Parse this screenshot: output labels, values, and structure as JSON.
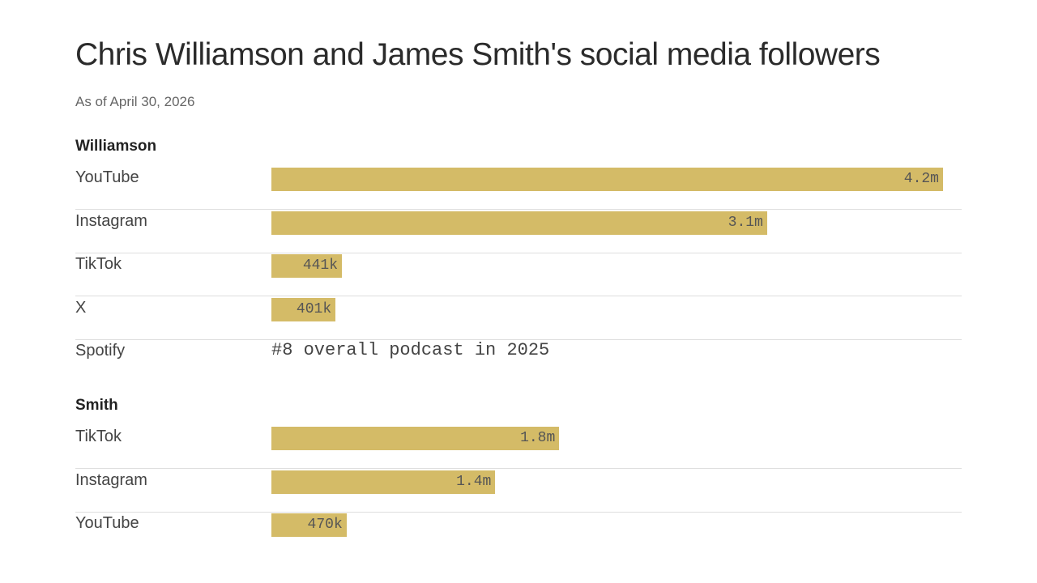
{
  "chart_data": {
    "type": "bar",
    "orientation": "horizontal",
    "title": "Chris Williamson and James Smith's social media followers",
    "subtitle": "As of April 30, 2026",
    "unit": "followers",
    "xlim": [
      0,
      4200000
    ],
    "bar_color": "#d4bb67",
    "groups": [
      {
        "name": "Williamson",
        "rows": [
          {
            "category": "YouTube",
            "value": 4200000,
            "label": "4.2m"
          },
          {
            "category": "Instagram",
            "value": 3100000,
            "label": "3.1m"
          },
          {
            "category": "TikTok",
            "value": 441000,
            "label": "441k"
          },
          {
            "category": "X",
            "value": 401000,
            "label": "401k"
          },
          {
            "category": "Spotify",
            "value": null,
            "label": "#8 overall podcast in 2025"
          }
        ]
      },
      {
        "name": "Smith",
        "rows": [
          {
            "category": "TikTok",
            "value": 1800000,
            "label": "1.8m"
          },
          {
            "category": "Instagram",
            "value": 1400000,
            "label": "1.4m"
          },
          {
            "category": "YouTube",
            "value": 470000,
            "label": "470k"
          }
        ]
      }
    ]
  }
}
